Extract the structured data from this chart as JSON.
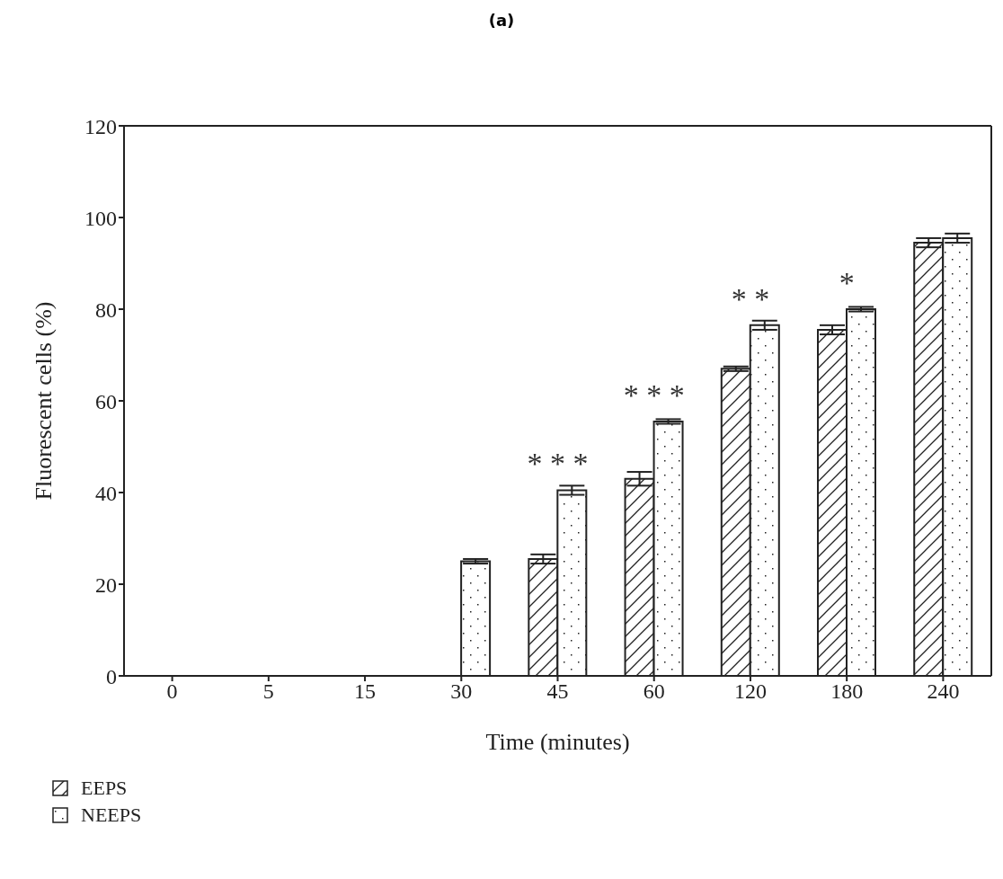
{
  "chart_data": {
    "type": "bar",
    "title": "(a)",
    "xlabel": "Time (minutes)",
    "ylabel": "Fluorescent cells (%)",
    "categories": [
      "0",
      "5",
      "15",
      "30",
      "45",
      "60",
      "120",
      "180",
      "240"
    ],
    "series": [
      {
        "name": "EEPS",
        "color": "#222222",
        "values": [
          0,
          0,
          0,
          0,
          25.5,
          43,
          67,
          75.5,
          94.5
        ],
        "errors": [
          null,
          null,
          null,
          null,
          1,
          1.5,
          0.5,
          1,
          1
        ]
      },
      {
        "name": "NEEPS",
        "color": "#222222",
        "values": [
          0,
          0,
          0,
          25,
          40.5,
          55.5,
          76.5,
          80,
          95.5
        ],
        "errors": [
          null,
          null,
          null,
          0.5,
          1,
          0.5,
          1,
          0.5,
          1
        ]
      }
    ],
    "ylim": [
      0,
      120
    ],
    "yticks": [
      0,
      20,
      40,
      60,
      80,
      100,
      120
    ],
    "grid": false,
    "legend": "bottom left",
    "annotations": [
      {
        "text": "* * *",
        "x": "45",
        "y": 40.5
      },
      {
        "text": "* * *",
        "x": "60",
        "y": 55.5
      },
      {
        "text": "* *",
        "x": "120",
        "y": 76.5
      },
      {
        "text": "*",
        "x": "180",
        "y": 80
      }
    ]
  }
}
